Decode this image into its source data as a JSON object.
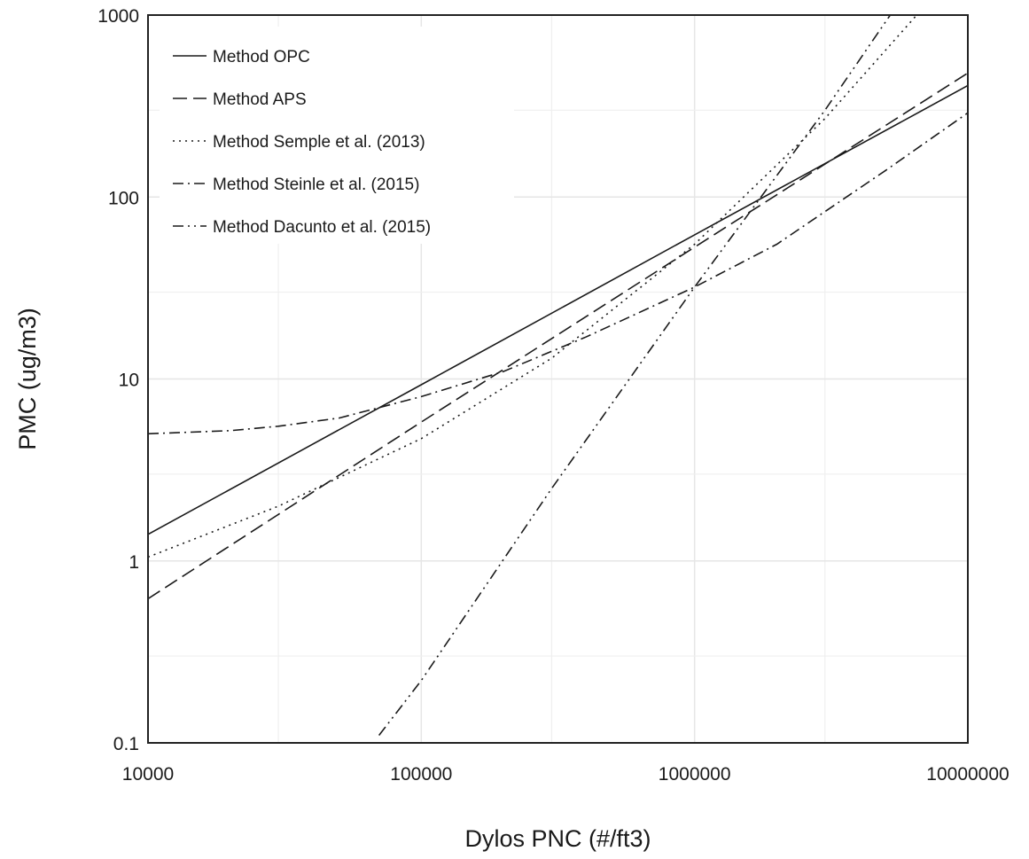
{
  "chart_data": {
    "type": "line",
    "title": "",
    "xlabel": "Dylos PNC (#/ft3)",
    "ylabel": "PMC (ug/m3)",
    "xscale": "log",
    "yscale": "log",
    "xlim": [
      10000,
      10000000
    ],
    "ylim": [
      0.1,
      1000
    ],
    "grid": true,
    "legend_position": "top-left",
    "x_ticks": [
      10000,
      100000,
      1000000,
      10000000
    ],
    "x_tick_labels": [
      "10000",
      "100000",
      "1000000",
      "10000000"
    ],
    "y_ticks": [
      0.1,
      1,
      10,
      100,
      1000
    ],
    "y_tick_labels": [
      "0.1",
      "1",
      "10",
      "100",
      "1000"
    ],
    "series": [
      {
        "name": "Method OPC",
        "dash": "solid",
        "points": [
          [
            10000,
            1.4
          ],
          [
            100000,
            9.3
          ],
          [
            1000000,
            62
          ],
          [
            10000000,
            410
          ]
        ]
      },
      {
        "name": "Method APS",
        "dash": "dashed",
        "points": [
          [
            10000,
            0.62
          ],
          [
            100000,
            5.8
          ],
          [
            1000000,
            53
          ],
          [
            10000000,
            480
          ]
        ]
      },
      {
        "name": "Method Semple et al. (2013)",
        "dash": "dotted",
        "points": [
          [
            10000,
            1.05
          ],
          [
            30000,
            2.0
          ],
          [
            100000,
            4.7
          ],
          [
            300000,
            13.0
          ],
          [
            1000000,
            55
          ],
          [
            3000000,
            270
          ],
          [
            6500000,
            1000
          ]
        ]
      },
      {
        "name": "Method Steinle et al. (2015)",
        "dash": "dashdot",
        "points": [
          [
            10000,
            5.0
          ],
          [
            20000,
            5.2
          ],
          [
            30000,
            5.5
          ],
          [
            50000,
            6.1
          ],
          [
            100000,
            8.0
          ],
          [
            200000,
            11.0
          ],
          [
            400000,
            17.0
          ],
          [
            700000,
            25.0
          ],
          [
            1000000,
            32.0
          ],
          [
            2000000,
            55
          ],
          [
            5000000,
            140
          ],
          [
            10000000,
            290
          ]
        ]
      },
      {
        "name": "Method Dacunto et al. (2015)",
        "dash": "dashdotdot",
        "points": [
          [
            70000,
            0.11
          ],
          [
            100000,
            0.22
          ],
          [
            300000,
            2.5
          ],
          [
            1000000,
            32
          ],
          [
            3000000,
            300
          ],
          [
            5200000,
            1000
          ]
        ]
      }
    ]
  }
}
